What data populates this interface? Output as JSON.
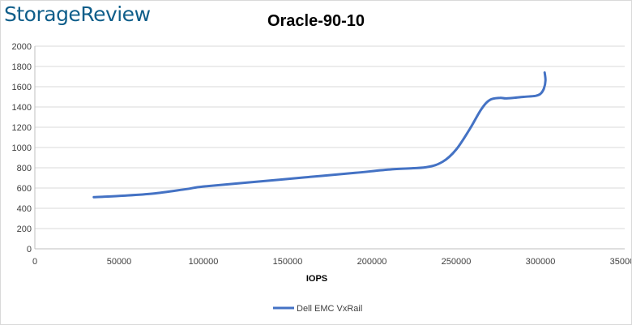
{
  "logo": {
    "text": "StorageReview"
  },
  "chart_data": {
    "type": "line",
    "title": "Oracle-90-10",
    "xlabel": "IOPS",
    "ylabel": "",
    "xlim": [
      0,
      350000
    ],
    "ylim": [
      0,
      2000
    ],
    "x_ticks": [
      0,
      50000,
      100000,
      150000,
      200000,
      250000,
      300000,
      350000
    ],
    "y_ticks": [
      0,
      200,
      400,
      600,
      800,
      1000,
      1200,
      1400,
      1600,
      1800,
      2000
    ],
    "x_tick_labels": [
      "0",
      "50000",
      "100000",
      "150000",
      "200000",
      "250000",
      "300000",
      "350000"
    ],
    "y_tick_labels": [
      "0",
      "200",
      "400",
      "600",
      "800",
      "1000",
      "1200",
      "1400",
      "1600",
      "1800",
      "2000"
    ],
    "grid": "horizontal",
    "legend_position": "bottom",
    "series": [
      {
        "name": "Dell EMC VxRail",
        "color": "#4472c4",
        "points": [
          [
            35000,
            510
          ],
          [
            50000,
            522
          ],
          [
            70000,
            545
          ],
          [
            90000,
            590
          ],
          [
            100000,
            615
          ],
          [
            130000,
            660
          ],
          [
            160000,
            705
          ],
          [
            190000,
            750
          ],
          [
            212000,
            785
          ],
          [
            232000,
            805
          ],
          [
            242000,
            860
          ],
          [
            250000,
            980
          ],
          [
            258000,
            1180
          ],
          [
            265000,
            1380
          ],
          [
            270000,
            1470
          ],
          [
            276000,
            1490
          ],
          [
            280000,
            1485
          ],
          [
            290000,
            1500
          ],
          [
            297000,
            1510
          ],
          [
            300000,
            1530
          ],
          [
            302000,
            1580
          ],
          [
            303000,
            1660
          ],
          [
            302500,
            1740
          ]
        ]
      }
    ]
  }
}
